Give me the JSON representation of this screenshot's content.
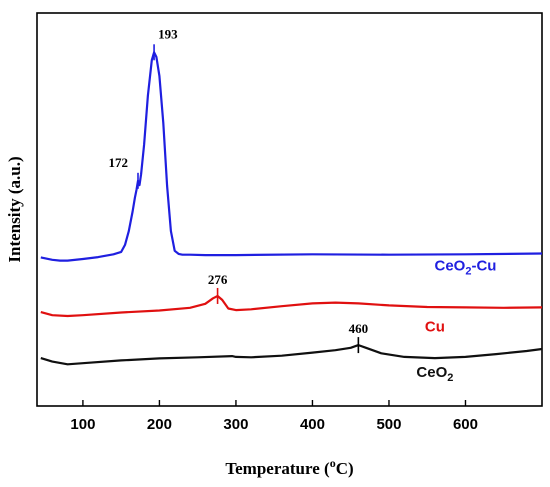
{
  "chart_data": {
    "type": "line",
    "title": "",
    "xlabel": "Temperature (",
    "xlabel_unit": "C)",
    "xlabel_super": "o",
    "ylabel": "Intensity (a.u.)",
    "xlim": [
      40,
      700
    ],
    "ylim": [
      0,
      100
    ],
    "x_ticks": [
      100,
      200,
      300,
      400,
      500,
      600
    ],
    "x_tick_labels": [
      "100",
      "200",
      "300",
      "400",
      "500",
      "600"
    ],
    "series": [
      {
        "name": "CeO2-Cu",
        "label_main": "CeO",
        "label_sub": "2",
        "label_tail": "-Cu",
        "color": "#1f1fe0",
        "x": [
          45,
          60,
          70,
          80,
          100,
          120,
          140,
          150,
          155,
          160,
          165,
          168,
          170,
          172,
          174,
          176,
          180,
          185,
          190,
          193,
          196,
          200,
          205,
          210,
          215,
          220,
          225,
          230,
          240,
          260,
          300,
          400,
          500,
          600,
          700
        ],
        "y": [
          37.8,
          37.2,
          37.0,
          37.0,
          37.4,
          37.9,
          38.6,
          39.2,
          41.0,
          44.5,
          49.5,
          53.0,
          55.0,
          57.3,
          56.2,
          59.0,
          66.5,
          79.0,
          88.0,
          90.0,
          88.8,
          84.0,
          72.0,
          56.0,
          44.5,
          39.5,
          38.7,
          38.5,
          38.5,
          38.4,
          38.4,
          38.6,
          38.5,
          38.6,
          38.8
        ]
      },
      {
        "name": "Cu",
        "label_main": "Cu",
        "label_sub": "",
        "label_tail": "",
        "color": "#e01010",
        "x": [
          45,
          60,
          80,
          100,
          150,
          200,
          240,
          260,
          270,
          276,
          282,
          290,
          300,
          320,
          360,
          400,
          430,
          460,
          500,
          550,
          600,
          650,
          700
        ],
        "y": [
          23.9,
          23.1,
          22.9,
          23.1,
          23.8,
          24.3,
          25.0,
          26.0,
          27.4,
          28.0,
          27.0,
          24.8,
          24.4,
          24.6,
          25.4,
          26.1,
          26.3,
          26.1,
          25.6,
          25.2,
          25.1,
          25.0,
          25.1
        ]
      },
      {
        "name": "CeO2",
        "label_main": "CeO",
        "label_sub": "2",
        "label_tail": "",
        "color": "#101010",
        "x": [
          45,
          60,
          80,
          100,
          150,
          200,
          250,
          295,
          300,
          320,
          360,
          400,
          430,
          450,
          460,
          470,
          490,
          520,
          560,
          600,
          640,
          680,
          700
        ],
        "y": [
          12.2,
          11.3,
          10.6,
          10.9,
          11.6,
          12.1,
          12.4,
          12.7,
          12.5,
          12.4,
          12.8,
          13.6,
          14.2,
          14.8,
          15.5,
          14.8,
          13.4,
          12.5,
          12.2,
          12.5,
          13.2,
          14.0,
          14.5
        ]
      }
    ],
    "annotations": [
      {
        "text": "193",
        "x": 193,
        "y": 90.0,
        "series": "CeO2-Cu",
        "side": "right"
      },
      {
        "text": "172",
        "x": 172,
        "y": 57.3,
        "series": "CeO2-Cu",
        "side": "left"
      },
      {
        "text": "276",
        "x": 276,
        "y": 28.0,
        "series": "Cu",
        "side": "above"
      },
      {
        "text": "460",
        "x": 460,
        "y": 15.5,
        "series": "CeO2",
        "side": "above"
      }
    ],
    "grid": false,
    "legend": "inline labels"
  }
}
